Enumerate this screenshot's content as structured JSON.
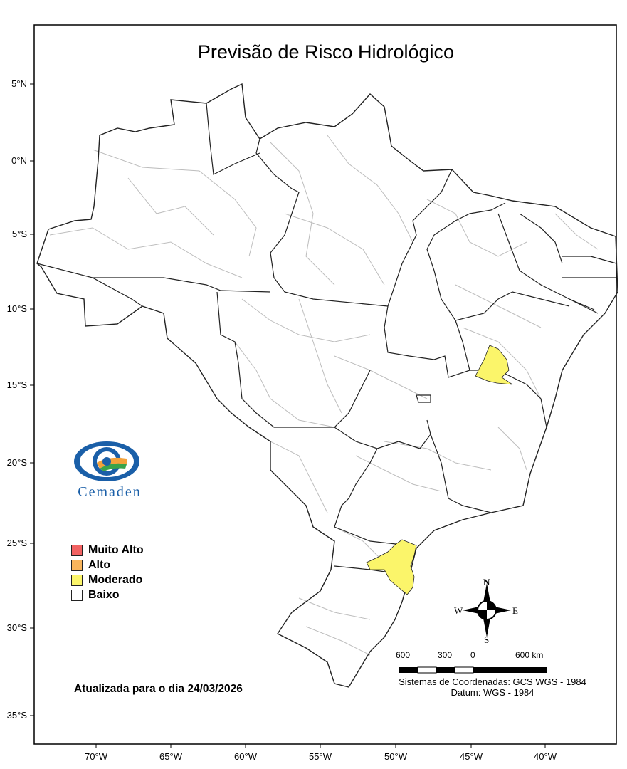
{
  "map": {
    "title": "Previsão de Risco Hidrológico",
    "updated_text": "Atualizada para o dia 24/03/2026",
    "latitude_ticks": [
      "5°N",
      "0°N",
      "5°S",
      "10°S",
      "15°S",
      "20°S",
      "25°S",
      "30°S",
      "35°S"
    ],
    "longitude_ticks": [
      "70°W",
      "65°W",
      "60°W",
      "55°W",
      "50°W",
      "45°W",
      "40°W"
    ]
  },
  "legend": {
    "items": [
      {
        "label": "Muito Alto",
        "color": "#f26262"
      },
      {
        "label": "Alto",
        "color": "#f9b55c"
      },
      {
        "label": "Moderado",
        "color": "#fbf56a"
      },
      {
        "label": "Baixo",
        "color": "#ffffff"
      }
    ]
  },
  "logo": {
    "text": "Cemaden"
  },
  "scale_bar": {
    "labels": [
      "600",
      "300",
      "0",
      "600 km"
    ]
  },
  "coordinate_system": {
    "line1": "Sistemas de Coordenadas: GCS WGS - 1984",
    "line2": "Datum: WGS - 1984"
  },
  "compass": {
    "n": "N",
    "s": "S",
    "e": "E",
    "w": "W"
  },
  "colors": {
    "state_border": "#222222",
    "basin_border": "#bdbdbd",
    "moderate_fill": "#fbf56a"
  }
}
